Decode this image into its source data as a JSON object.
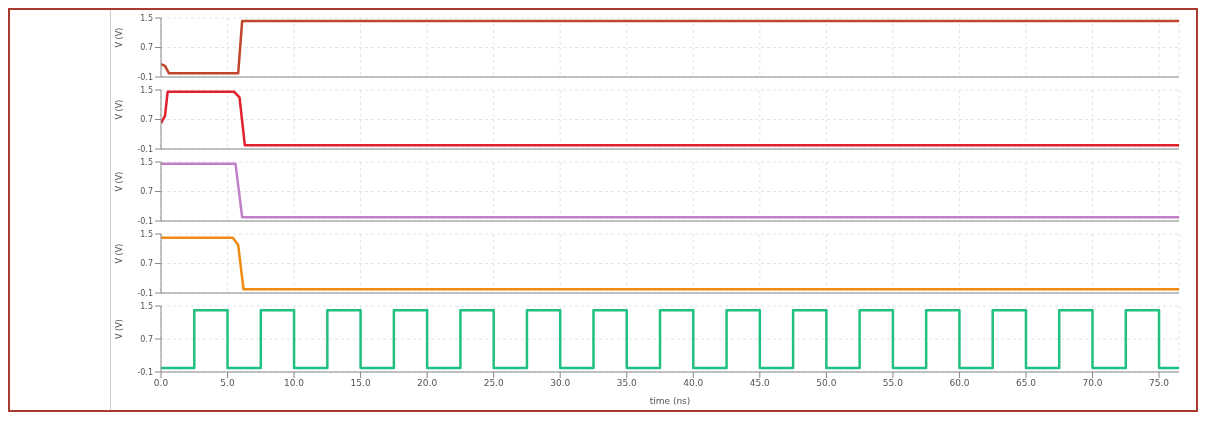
{
  "chart_data": [
    {
      "type": "line",
      "ylabel": "V (V)",
      "xlim": [
        0,
        76.5
      ],
      "xticks": [
        0,
        5,
        10,
        15,
        20,
        25,
        30,
        35,
        40,
        45,
        50,
        55,
        60,
        65,
        70,
        75
      ],
      "ylim": [
        -0.1,
        1.5
      ],
      "yticks": [
        -0.1,
        0.7,
        1.5
      ],
      "grid": true,
      "tick_labels": "y",
      "series": [
        {
          "color": "#c0452a",
          "x": [
            0,
            0.3,
            0.6,
            5.8,
            6.1,
            76.5
          ],
          "values": [
            0.25,
            0.2,
            0.0,
            0.0,
            1.42,
            1.42
          ]
        }
      ]
    },
    {
      "type": "line",
      "ylabel": "V (V)",
      "xlim": [
        0,
        76.5
      ],
      "xticks": [
        0,
        5,
        10,
        15,
        20,
        25,
        30,
        35,
        40,
        45,
        50,
        55,
        60,
        65,
        70,
        75
      ],
      "ylim": [
        -0.1,
        1.5
      ],
      "yticks": [
        -0.1,
        0.7,
        1.5
      ],
      "grid": true,
      "tick_labels": "y",
      "series": [
        {
          "color": "#e0202a",
          "x": [
            0,
            0.3,
            0.5,
            5.5,
            5.9,
            6.3,
            76.5
          ],
          "values": [
            0.6,
            0.8,
            1.45,
            1.45,
            1.3,
            0.0,
            0.0
          ]
        }
      ]
    },
    {
      "type": "line",
      "ylabel": "V (V)",
      "xlim": [
        0,
        76.5
      ],
      "xticks": [
        0,
        5,
        10,
        15,
        20,
        25,
        30,
        35,
        40,
        45,
        50,
        55,
        60,
        65,
        70,
        75
      ],
      "ylim": [
        -0.1,
        1.5
      ],
      "yticks": [
        -0.1,
        0.7,
        1.5
      ],
      "grid": true,
      "tick_labels": "y",
      "series": [
        {
          "color": "#c080c8",
          "x": [
            0,
            5.6,
            6.1,
            76.5
          ],
          "values": [
            1.45,
            1.45,
            0.0,
            0.0
          ]
        }
      ]
    },
    {
      "type": "line",
      "ylabel": "V (V)",
      "xlim": [
        0,
        76.5
      ],
      "xticks": [
        0,
        5,
        10,
        15,
        20,
        25,
        30,
        35,
        40,
        45,
        50,
        55,
        60,
        65,
        70,
        75
      ],
      "ylim": [
        -0.1,
        1.5
      ],
      "yticks": [
        -0.1,
        0.7,
        1.5
      ],
      "grid": true,
      "tick_labels": "y",
      "series": [
        {
          "color": "#f08a10",
          "x": [
            0,
            5.4,
            5.8,
            6.2,
            76.5
          ],
          "values": [
            1.4,
            1.4,
            1.2,
            0.0,
            0.0
          ]
        }
      ]
    },
    {
      "type": "line",
      "xlabel": "time (ns)",
      "ylabel": "V (V)",
      "xlim": [
        0,
        76.5
      ],
      "xticks": [
        {
          "value": 0,
          "label": "0.0"
        },
        {
          "value": 5,
          "label": "5.0"
        },
        {
          "value": 10,
          "label": "10.0"
        },
        {
          "value": 15,
          "label": "15.0"
        },
        {
          "value": 20,
          "label": "20.0"
        },
        {
          "value": 25,
          "label": "25.0"
        },
        {
          "value": 30,
          "label": "30.0"
        },
        {
          "value": 35,
          "label": "35.0"
        },
        {
          "value": 40,
          "label": "40.0"
        },
        {
          "value": 45,
          "label": "45.0"
        },
        {
          "value": 50,
          "label": "50.0"
        },
        {
          "value": 55,
          "label": "55.0"
        },
        {
          "value": 60,
          "label": "60.0"
        },
        {
          "value": 65,
          "label": "65.0"
        },
        {
          "value": 70,
          "label": "70.0"
        },
        {
          "value": 75,
          "label": "75.0"
        }
      ],
      "ylim": [
        -0.1,
        1.5
      ],
      "yticks": [
        -0.1,
        0.7,
        1.5
      ],
      "grid": true,
      "series": [
        {
          "color": "#20c080",
          "x": [
            0,
            2.5,
            2.5,
            5,
            5,
            7.5,
            7.5,
            10,
            10,
            12.5,
            12.5,
            15,
            15,
            17.5,
            17.5,
            20,
            20,
            22.5,
            22.5,
            25,
            25,
            27.5,
            27.5,
            30,
            30,
            32.5,
            32.5,
            35,
            35,
            37.5,
            37.5,
            40,
            40,
            42.5,
            42.5,
            45,
            45,
            47.5,
            47.5,
            50,
            50,
            52.5,
            52.5,
            55,
            55,
            57.5,
            57.5,
            60,
            60,
            62.5,
            62.5,
            65,
            65,
            67.5,
            67.5,
            70,
            70,
            72.5,
            72.5,
            75,
            75,
            76.5
          ],
          "values": [
            0,
            0,
            1.4,
            1.4,
            0,
            0,
            1.4,
            1.4,
            0,
            0,
            1.4,
            1.4,
            0,
            0,
            1.4,
            1.4,
            0,
            0,
            1.4,
            1.4,
            0,
            0,
            1.4,
            1.4,
            0,
            0,
            1.4,
            1.4,
            0,
            0,
            1.4,
            1.4,
            0,
            0,
            1.4,
            1.4,
            0,
            0,
            1.4,
            1.4,
            0,
            0,
            1.4,
            1.4,
            0,
            0,
            1.4,
            1.4,
            0,
            0,
            1.4,
            1.4,
            0,
            0,
            1.4,
            1.4,
            0,
            0,
            1.4,
            1.4,
            0,
            0
          ]
        }
      ]
    }
  ]
}
